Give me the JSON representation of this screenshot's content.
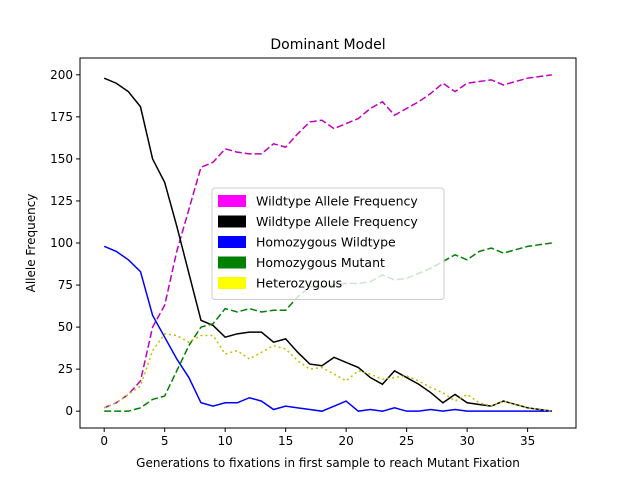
{
  "chart_data": {
    "type": "line",
    "title": "Dominant Model",
    "xlabel": "Generations to fixations in first sample to reach Mutant Fixation",
    "ylabel": "Allele Frequency",
    "xlim": [
      -2,
      39
    ],
    "ylim": [
      -10,
      210
    ],
    "xticks": [
      0,
      5,
      10,
      15,
      20,
      25,
      30,
      35
    ],
    "yticks": [
      0,
      25,
      50,
      75,
      100,
      125,
      150,
      175,
      200
    ],
    "grid": false,
    "legend_placement": "center",
    "x": [
      0,
      1,
      2,
      3,
      4,
      5,
      6,
      7,
      8,
      9,
      10,
      11,
      12,
      13,
      14,
      15,
      16,
      17,
      18,
      19,
      20,
      21,
      22,
      23,
      24,
      25,
      26,
      27,
      28,
      29,
      30,
      31,
      32,
      33,
      34,
      35,
      36,
      37
    ],
    "series": [
      {
        "name": "Wildtype Allele Frequency",
        "color": "#bf00bf",
        "style": "dashed",
        "values": [
          2,
          5,
          10,
          18,
          50,
          63,
          95,
          120,
          145,
          148,
          156,
          154,
          153,
          153,
          159,
          157,
          165,
          172,
          173,
          168,
          171,
          174,
          180,
          184,
          176,
          180,
          184,
          189,
          195,
          190,
          195,
          196,
          197,
          194,
          196,
          198,
          199,
          200
        ]
      },
      {
        "name": "Wildtype Allele Frequency",
        "color": "#000000",
        "style": "solid",
        "values": [
          198,
          195,
          190,
          181,
          150,
          136,
          110,
          82,
          54,
          51,
          44,
          46,
          47,
          47,
          41,
          43,
          35,
          28,
          27,
          32,
          29,
          26,
          20,
          16,
          24,
          20,
          16,
          11,
          5,
          10,
          5,
          4,
          3,
          6,
          4,
          2,
          1,
          0
        ]
      },
      {
        "name": "Homozygous Wildtype",
        "color": "#0000ff",
        "style": "solid",
        "values": [
          98,
          95,
          90,
          83,
          57,
          44,
          31,
          20,
          5,
          3,
          5,
          5,
          8,
          6,
          1,
          3,
          2,
          1,
          0,
          3,
          6,
          0,
          1,
          0,
          2,
          0,
          0,
          1,
          0,
          1,
          0,
          0,
          0,
          0,
          0,
          0,
          0,
          0
        ]
      },
      {
        "name": "Homozygous Mutant",
        "color": "#007f00",
        "style": "dashed",
        "values": [
          0,
          0,
          0,
          2,
          7,
          9,
          24,
          39,
          50,
          52,
          61,
          59,
          61,
          59,
          60,
          60,
          68,
          74,
          74,
          75,
          76,
          76,
          77,
          81,
          78,
          79,
          82,
          85,
          89,
          93,
          90,
          95,
          97,
          94,
          96,
          98,
          99,
          100
        ]
      },
      {
        "name": "Heterozygous",
        "color": "#bfbf00",
        "style": "dotted",
        "values": [
          2,
          5,
          10,
          15,
          36,
          46,
          45,
          41,
          45,
          45,
          34,
          36,
          31,
          35,
          39,
          37,
          30,
          25,
          26,
          22,
          18,
          24,
          22,
          19,
          20,
          21,
          18,
          14,
          11,
          6,
          10,
          5,
          3,
          6,
          4,
          2,
          1,
          0
        ]
      }
    ]
  },
  "legend": [
    {
      "label": "Wildtype Allele Frequency",
      "color": "#ff00ff"
    },
    {
      "label": "Wildtype Allele Frequency",
      "color": "#000000"
    },
    {
      "label": "Homozygous Wildtype",
      "color": "#0000ff"
    },
    {
      "label": "Homozygous Mutant",
      "color": "#008000"
    },
    {
      "label": "Heterozygous",
      "color": "#ffff00"
    }
  ]
}
